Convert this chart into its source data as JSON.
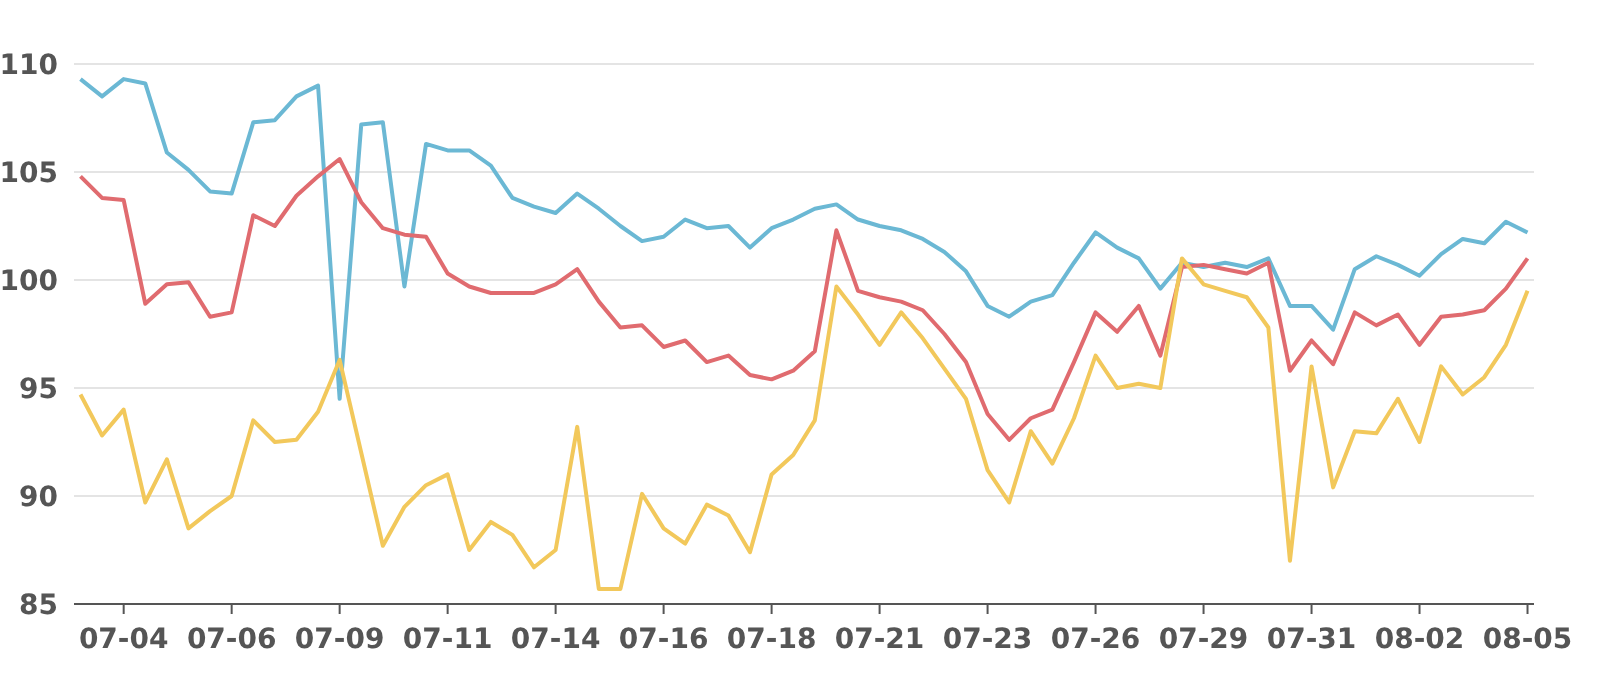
{
  "chart_data": {
    "type": "line",
    "ylim": [
      85,
      110
    ],
    "yticks": [
      85,
      90,
      95,
      100,
      105,
      110
    ],
    "grid": "y",
    "line_style": "solid",
    "categories": [
      null,
      null,
      "07-04",
      null,
      null,
      null,
      null,
      "07-06",
      null,
      null,
      null,
      null,
      "07-09",
      null,
      null,
      null,
      null,
      "07-11",
      null,
      null,
      null,
      null,
      "07-14",
      null,
      null,
      null,
      null,
      "07-16",
      null,
      null,
      null,
      null,
      "07-18",
      null,
      null,
      null,
      null,
      "07-21",
      null,
      null,
      null,
      null,
      "07-23",
      null,
      null,
      null,
      null,
      "07-26",
      null,
      null,
      null,
      null,
      "07-29",
      null,
      null,
      null,
      null,
      "07-31",
      null,
      null,
      null,
      null,
      "08-02",
      null,
      null,
      null,
      null,
      "08-05"
    ],
    "series": [
      {
        "color": "#6bb8d4",
        "values": [
          109.3,
          108.5,
          109.3,
          109.1,
          105.9,
          105.1,
          104.1,
          104.0,
          107.3,
          107.4,
          108.5,
          109.0,
          94.5,
          107.2,
          107.3,
          99.7,
          106.3,
          106.0,
          106.0,
          105.3,
          103.8,
          103.4,
          103.1,
          104.0,
          103.3,
          102.5,
          101.8,
          102.0,
          102.8,
          102.4,
          102.5,
          101.5,
          102.4,
          102.8,
          103.3,
          103.5,
          102.8,
          102.5,
          102.3,
          101.9,
          101.3,
          100.4,
          98.8,
          98.3,
          99.0,
          99.3,
          100.8,
          102.2,
          101.5,
          101.0,
          99.6,
          100.8,
          100.6,
          100.8,
          100.6,
          101.0,
          98.8,
          98.8,
          97.7,
          100.5,
          101.1,
          100.7,
          100.2,
          101.2,
          101.9,
          101.7,
          102.7,
          102.2
        ]
      },
      {
        "color": "#e06b6f",
        "values": [
          104.8,
          103.8,
          103.7,
          98.9,
          99.8,
          99.9,
          98.3,
          98.5,
          103.0,
          102.5,
          103.9,
          104.8,
          105.6,
          103.6,
          102.4,
          102.1,
          102.0,
          100.3,
          99.7,
          99.4,
          99.4,
          99.4,
          99.8,
          100.5,
          99.0,
          97.8,
          97.9,
          96.9,
          97.2,
          96.2,
          96.5,
          95.6,
          95.4,
          95.8,
          96.7,
          102.3,
          99.5,
          99.2,
          99.0,
          98.6,
          97.5,
          96.2,
          93.8,
          92.6,
          93.6,
          94.0,
          96.2,
          98.5,
          97.6,
          98.8,
          96.5,
          100.6,
          100.7,
          100.5,
          100.3,
          100.8,
          95.8,
          97.2,
          96.1,
          98.5,
          97.9,
          98.4,
          97.0,
          98.3,
          98.4,
          98.6,
          99.6,
          101.0
        ]
      },
      {
        "color": "#f2c85b",
        "values": [
          94.7,
          92.8,
          94.0,
          89.7,
          91.7,
          88.5,
          89.3,
          90.0,
          93.5,
          92.5,
          92.6,
          93.9,
          96.3,
          92.0,
          87.7,
          89.5,
          90.5,
          91.0,
          87.5,
          88.8,
          88.2,
          86.7,
          87.5,
          93.2,
          85.7,
          85.7,
          90.1,
          88.5,
          87.8,
          89.6,
          89.1,
          87.4,
          91.0,
          91.9,
          93.5,
          99.7,
          98.4,
          97.0,
          98.5,
          97.3,
          95.9,
          94.5,
          91.2,
          89.7,
          93.0,
          91.5,
          93.6,
          96.5,
          95.0,
          95.2,
          95.0,
          101.0,
          99.8,
          99.5,
          99.2,
          97.8,
          87.0,
          96.0,
          90.4,
          93.0,
          92.9,
          94.5,
          92.5,
          96.0,
          94.7,
          95.5,
          97.0,
          99.5
        ]
      }
    ]
  }
}
